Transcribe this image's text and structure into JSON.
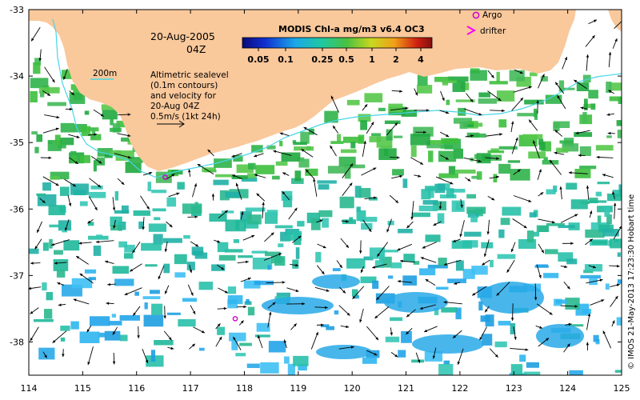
{
  "map": {
    "date_line": "20-Aug-2005",
    "time_line": "04Z",
    "contour_label": "200m",
    "description_lines": [
      "Altimetric sealevel",
      "(0.1m contours)",
      "and velocity for",
      "20-Aug 04Z",
      "0.5m/s (1kt 24h)"
    ],
    "credit": "© IMOS 21-May-2013 17:23:30 Hobart time"
  },
  "colorbar": {
    "title": "MODIS Chl-a mg/m3 v6.4 OC3",
    "ticks": [
      "0.05",
      "0.1",
      "0.25",
      "0.5",
      "1",
      "2",
      "4"
    ]
  },
  "legend": {
    "argo_label": "Argo",
    "drifter_label": "drifter",
    "argo_color": "#cc00cc",
    "drifter_color": "#ff00ff"
  },
  "axes": {
    "x_ticks": [
      "114",
      "115",
      "116",
      "117",
      "118",
      "119",
      "120",
      "121",
      "122",
      "123",
      "124",
      "125"
    ],
    "y_ticks": [
      "-33",
      "-34",
      "-35",
      "-36",
      "-37",
      "-38"
    ],
    "lon_range": [
      114,
      125
    ],
    "lat_range": [
      -38.5,
      -33
    ]
  },
  "colors": {
    "land": "#f9c89b",
    "shelf_contour": "#46d7e6",
    "chl_green": "#2fb24a",
    "chl_teal": "#1fb89a",
    "chl_blue": "#28a9e8"
  },
  "argo_floats": [
    {
      "lon": 116.53,
      "lat": -35.52
    },
    {
      "lon": 117.83,
      "lat": -37.65
    }
  ]
}
